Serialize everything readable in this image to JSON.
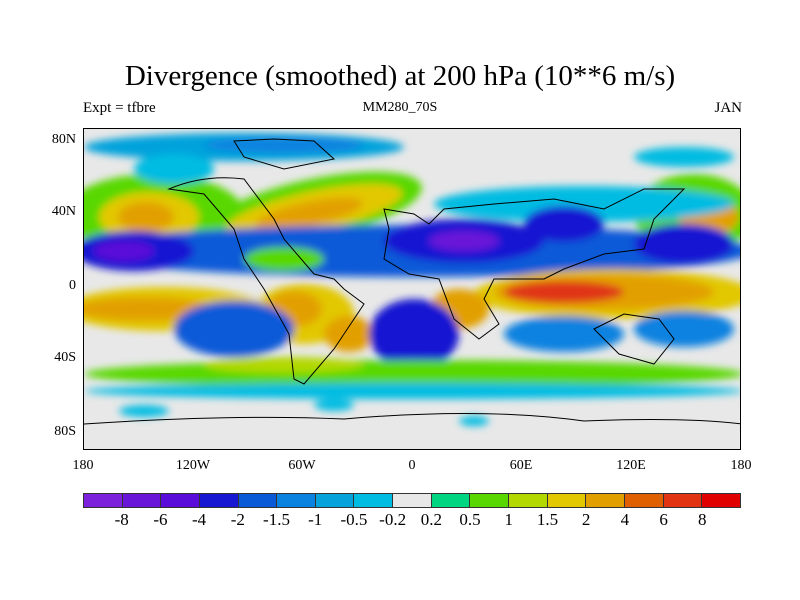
{
  "title": "Divergence (smoothed) at 200 hPa (10**6 m/s)",
  "left_subtitle": "Expt = tfbre",
  "center_subtitle": "MM280_70S",
  "right_subtitle": "JAN",
  "y_ticks": [
    "80N",
    "40N",
    "0",
    "40S",
    "80S"
  ],
  "x_ticks": [
    "180",
    "120W",
    "60W",
    "0",
    "60E",
    "120E",
    "180"
  ],
  "colorbar": {
    "labels": [
      "-8",
      "-6",
      "-4",
      "-2",
      "-1.5",
      "-1",
      "-0.5",
      "-0.2",
      "0.2",
      "0.5",
      "1",
      "1.5",
      "2",
      "4",
      "6",
      "8"
    ],
    "colors": [
      "#7d22dc",
      "#6a16d8",
      "#5a0cd8",
      "#1818d2",
      "#0a5ad8",
      "#0a82e0",
      "#06a2dc",
      "#00bce2",
      "#e8e8e8",
      "#00d682",
      "#58d800",
      "#b2d800",
      "#e2c800",
      "#e2a000",
      "#e06000",
      "#e03412",
      "#e00000"
    ]
  }
}
